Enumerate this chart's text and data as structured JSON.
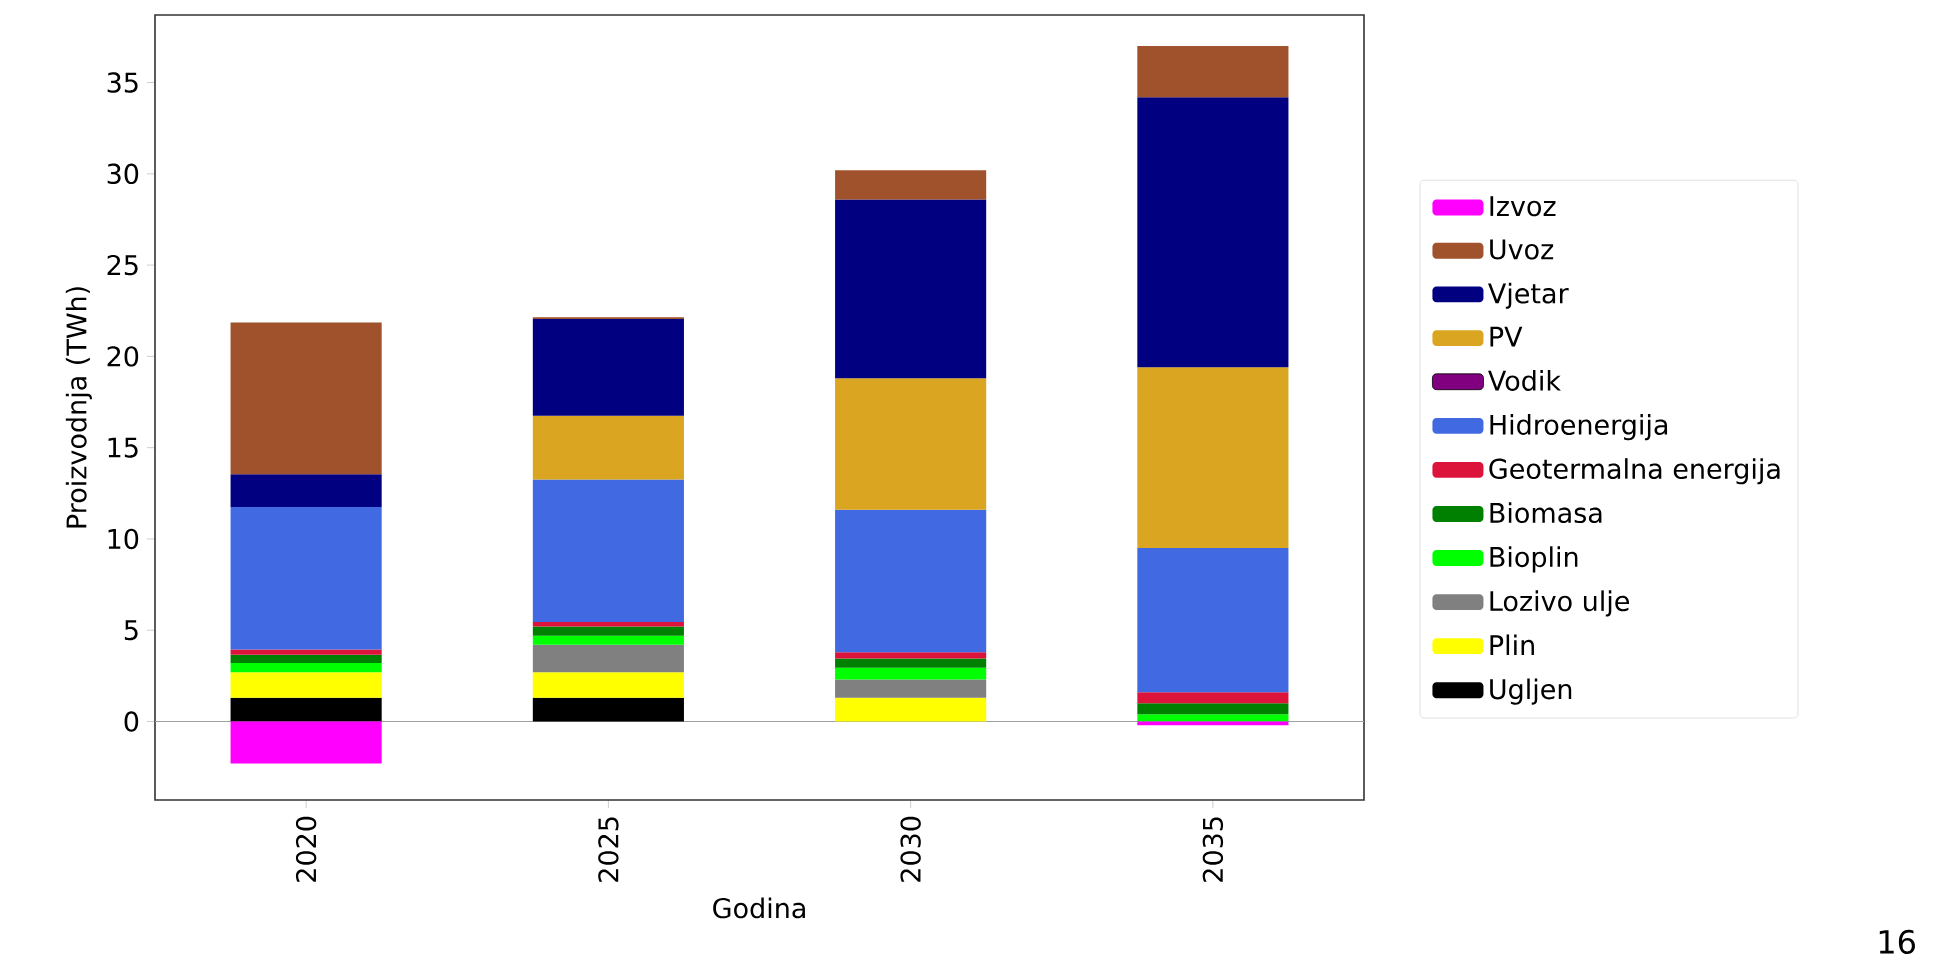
{
  "chart_data": {
    "type": "bar",
    "stacked": true,
    "xlabel": "Godina",
    "ylabel": "Proizvodnja (TWh)",
    "categories": [
      "2020",
      "2025",
      "2030",
      "2035"
    ],
    "series": [
      {
        "name": "Ugljen",
        "color": "#000000",
        "values": [
          1.3,
          1.3,
          0,
          0
        ]
      },
      {
        "name": "Plin",
        "color": "#ffff00",
        "values": [
          1.4,
          1.4,
          1.3,
          0
        ]
      },
      {
        "name": "Lozivo ulje",
        "color": "#808080",
        "values": [
          0,
          1.5,
          1.0,
          0
        ]
      },
      {
        "name": "Bioplin",
        "color": "#00ff00",
        "values": [
          0.5,
          0.5,
          0.65,
          0.4
        ]
      },
      {
        "name": "Biomasa",
        "color": "#008000",
        "values": [
          0.45,
          0.5,
          0.5,
          0.6
        ]
      },
      {
        "name": "Geotermalna energija",
        "color": "#dc143c",
        "values": [
          0.3,
          0.25,
          0.35,
          0.6
        ]
      },
      {
        "name": "Hidroenergija",
        "color": "#4169e1",
        "values": [
          7.8,
          7.8,
          7.8,
          7.9
        ]
      },
      {
        "name": "Vodik",
        "color": "#800080",
        "values": [
          0,
          0,
          0,
          0
        ]
      },
      {
        "name": "PV",
        "color": "#daa520",
        "values": [
          0,
          3.5,
          7.2,
          9.9
        ]
      },
      {
        "name": "Vjetar",
        "color": "#000080",
        "values": [
          1.8,
          5.3,
          9.8,
          14.8
        ]
      },
      {
        "name": "Uvoz",
        "color": "#a0522d",
        "values": [
          8.3,
          0.1,
          1.6,
          2.8
        ]
      },
      {
        "name": "Izvoz",
        "color": "#ff00ff",
        "values": [
          -2.3,
          0,
          0,
          -0.2
        ]
      }
    ],
    "ylim": [
      -4.3,
      38.7
    ],
    "yticks": [
      0,
      5,
      10,
      15,
      20,
      25,
      30,
      35
    ],
    "ref_lines": [
      {
        "axis": "y",
        "value": 0,
        "color": "#a0a0a0"
      }
    ],
    "legend": "right",
    "annotations": [
      "16"
    ]
  }
}
